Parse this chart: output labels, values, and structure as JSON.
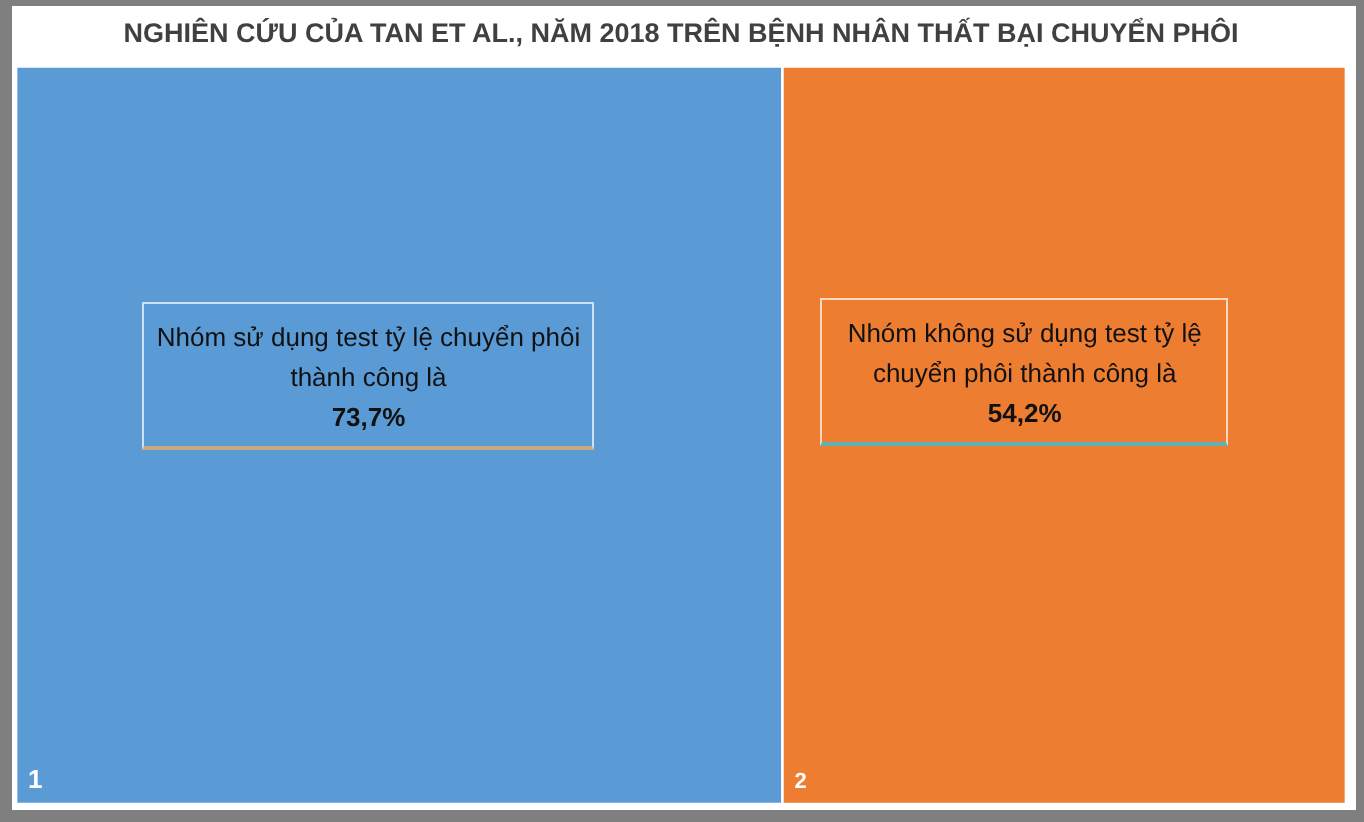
{
  "chart_data": {
    "type": "other",
    "title": "NGHIÊN CỨU CỦA TAN ET AL., NĂM 2018 TRÊN BỆNH NHÂN THẤT BẠI CHUYỂN PHÔI",
    "categories": [
      "1",
      "2"
    ],
    "values": [
      73.7,
      54.2
    ],
    "colors": [
      "#5b9bd5",
      "#ed7d31"
    ],
    "value_labels": [
      "73,7%",
      "54,2%"
    ],
    "annotations": [
      "Nhóm sử dụng test tỷ lệ chuyển phôi thành công là",
      "Nhóm không sử dụng test tỷ lệ chuyển phôi thành công là"
    ]
  }
}
